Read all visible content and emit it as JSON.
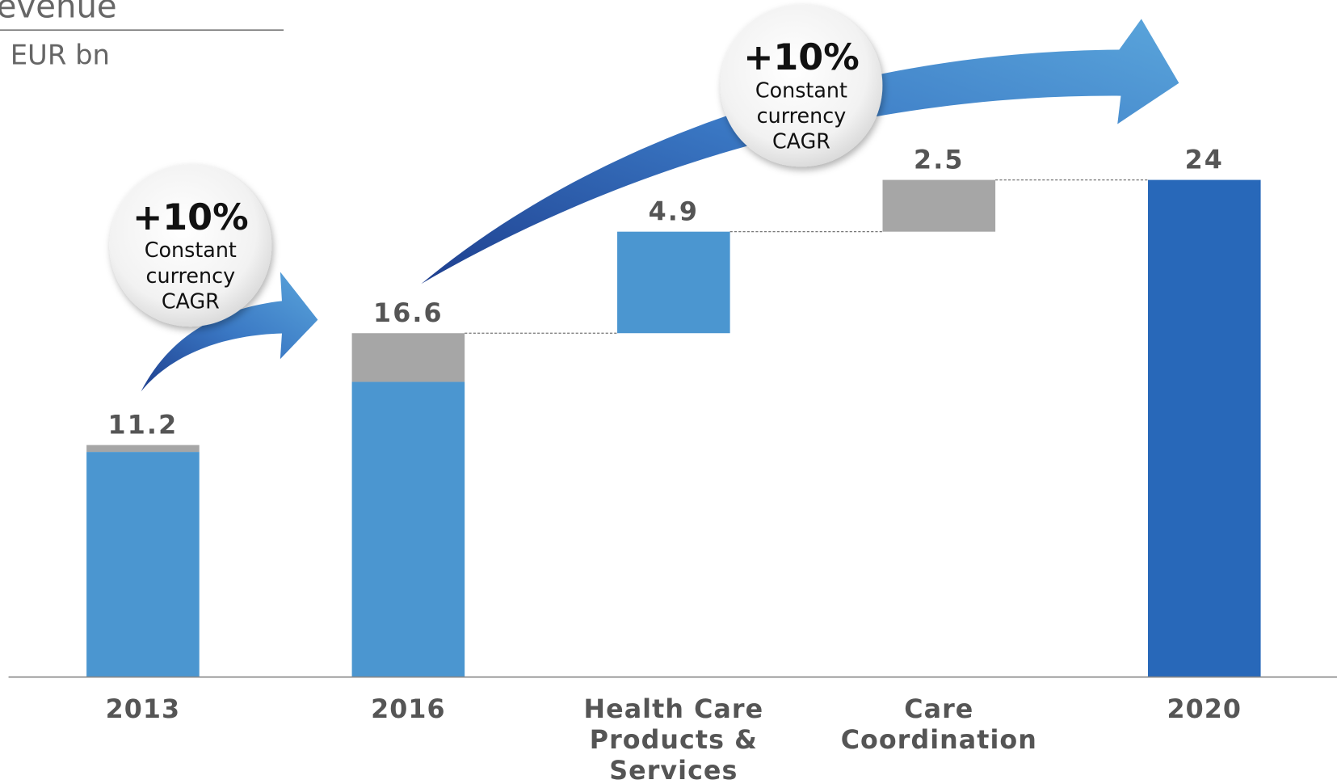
{
  "chart_data": {
    "type": "waterfall",
    "title": "evenue",
    "subtitle": "EUR bn",
    "categories": [
      [
        "2013"
      ],
      [
        "2016"
      ],
      [
        "Health Care",
        "Products &",
        "Services"
      ],
      [
        "Care",
        "Coordination"
      ],
      [
        "2020"
      ]
    ],
    "values": [
      11.2,
      16.6,
      4.9,
      2.5,
      24
    ],
    "measure": [
      "absolute",
      "absolute",
      "relative",
      "relative",
      "absolute"
    ],
    "colors": [
      "#4b96d0",
      "#4b96d0",
      "#4b96d0",
      "#a6a6a6",
      "#2868b9"
    ],
    "segments": [
      0.33,
      2.35,
      null,
      null,
      null
    ],
    "segment_color": "#a6a6a6",
    "ylim": [
      0,
      25.5
    ],
    "annotations": [
      {
        "text": "+10%",
        "lines": [
          "Constant",
          "currency",
          "CAGR"
        ]
      },
      {
        "text": "+10%",
        "lines": [
          "Constant",
          "currency",
          "CAGR"
        ]
      }
    ]
  }
}
